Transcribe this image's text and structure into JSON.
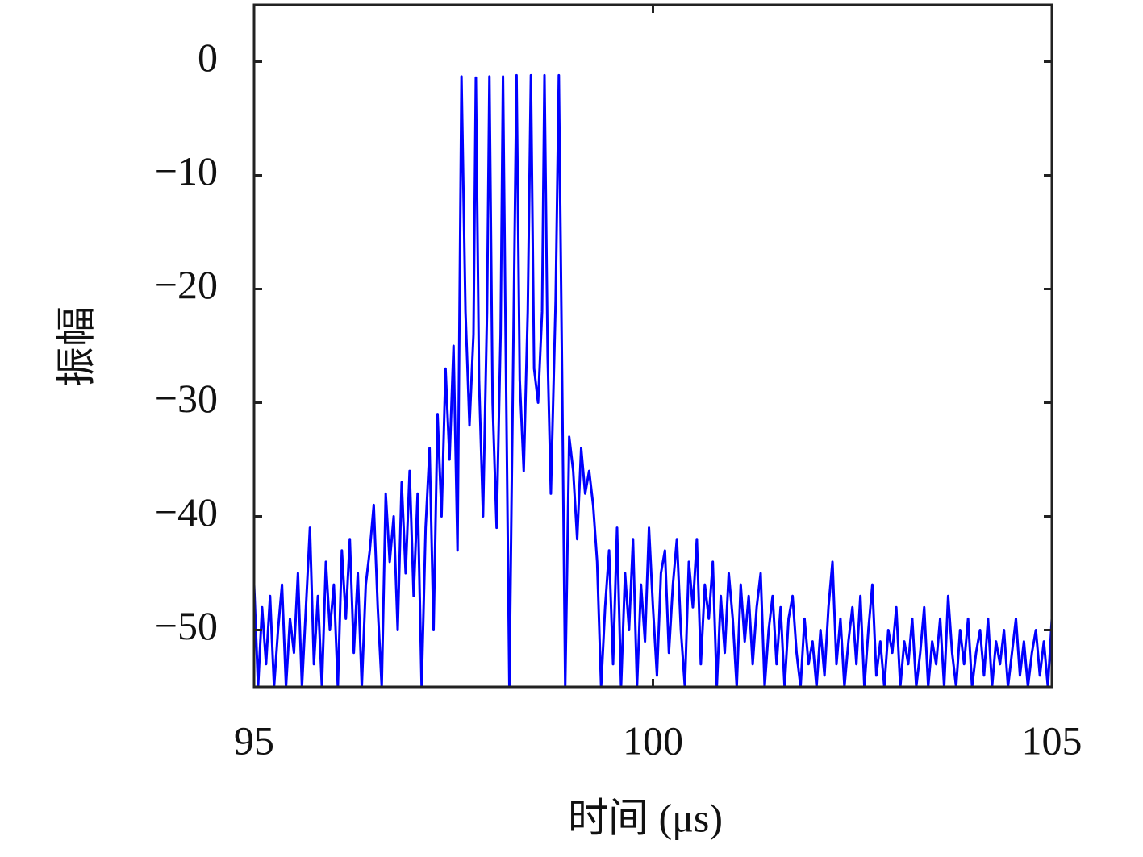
{
  "chart_data": {
    "type": "line",
    "xlabel": "时间 (μs)",
    "ylabel": "振幅",
    "x": [
      95.0,
      95.05,
      95.1,
      95.15,
      95.2,
      95.25,
      95.3,
      95.35,
      95.4,
      95.45,
      95.5,
      95.55,
      95.6,
      95.65,
      95.7,
      95.75,
      95.8,
      95.85,
      95.9,
      95.95,
      96.0,
      96.05,
      96.1,
      96.15,
      96.2,
      96.25,
      96.3,
      96.35,
      96.4,
      96.45,
      96.5,
      96.55,
      96.6,
      96.65,
      96.7,
      96.75,
      96.8,
      96.85,
      96.9,
      96.95,
      97.0,
      97.05,
      97.1,
      97.15,
      97.2,
      97.25,
      97.3,
      97.35,
      97.4,
      97.45,
      97.5,
      97.55,
      97.6,
      97.65,
      97.7,
      97.75,
      97.78,
      97.82,
      97.87,
      97.92,
      97.95,
      97.99,
      98.04,
      98.09,
      98.12,
      98.16,
      98.2,
      98.25,
      98.29,
      98.33,
      98.38,
      98.43,
      98.47,
      98.51,
      98.56,
      98.61,
      98.64,
      98.68,
      98.72,
      98.78,
      98.82,
      98.86,
      98.9,
      98.95,
      99.0,
      99.05,
      99.1,
      99.15,
      99.2,
      99.25,
      99.3,
      99.35,
      99.4,
      99.45,
      99.5,
      99.55,
      99.6,
      99.65,
      99.7,
      99.75,
      99.8,
      99.85,
      99.9,
      99.95,
      100.0,
      100.05,
      100.1,
      100.15,
      100.2,
      100.25,
      100.3,
      100.35,
      100.4,
      100.45,
      100.5,
      100.55,
      100.6,
      100.65,
      100.7,
      100.75,
      100.8,
      100.85,
      100.9,
      100.95,
      101.0,
      101.05,
      101.1,
      101.15,
      101.2,
      101.25,
      101.3,
      101.35,
      101.4,
      101.45,
      101.5,
      101.55,
      101.6,
      101.65,
      101.7,
      101.75,
      101.8,
      101.85,
      101.9,
      101.95,
      102.0,
      102.05,
      102.1,
      102.15,
      102.2,
      102.25,
      102.3,
      102.35,
      102.4,
      102.45,
      102.5,
      102.55,
      102.6,
      102.65,
      102.7,
      102.75,
      102.8,
      102.85,
      102.9,
      102.95,
      103.0,
      103.05,
      103.1,
      103.15,
      103.2,
      103.25,
      103.3,
      103.35,
      103.4,
      103.45,
      103.5,
      103.55,
      103.6,
      103.65,
      103.7,
      103.75,
      103.8,
      103.85,
      103.9,
      103.95,
      104.0,
      104.05,
      104.1,
      104.15,
      104.2,
      104.25,
      104.3,
      104.35,
      104.4,
      104.45,
      104.5,
      104.55,
      104.6,
      104.65,
      104.7,
      104.75,
      104.8,
      104.85,
      104.9,
      104.95,
      105.0
    ],
    "values": [
      -46,
      -55,
      -48,
      -53,
      -47,
      -55,
      -50,
      -46,
      -55,
      -49,
      -52,
      -45,
      -55,
      -48,
      -41,
      -53,
      -47,
      -55,
      -44,
      -50,
      -46,
      -55,
      -43,
      -49,
      -42,
      -52,
      -45,
      -55,
      -46,
      -43,
      -39,
      -48,
      -55,
      -38,
      -44,
      -40,
      -50,
      -37,
      -45,
      -36,
      -47,
      -38,
      -55,
      -41,
      -34,
      -50,
      -31,
      -40,
      -27,
      -35,
      -25,
      -43,
      -1.3,
      -22,
      -32,
      -24,
      -1.4,
      -28,
      -40,
      -22,
      -1.3,
      -30,
      -41,
      -24,
      -1.3,
      -29,
      -55,
      -25,
      -1.2,
      -28,
      -36,
      -22,
      -1.2,
      -27,
      -30,
      -22,
      -1.2,
      -26,
      -38,
      -21,
      -1.2,
      -27,
      -55,
      -33,
      -36,
      -42,
      -34,
      -38,
      -36,
      -39,
      -44,
      -55,
      -48,
      -43,
      -53,
      -41,
      -55,
      -45,
      -50,
      -42,
      -55,
      -46,
      -51,
      -41,
      -48,
      -54,
      -45,
      -43,
      -52,
      -46,
      -42,
      -50,
      -55,
      -44,
      -48,
      -42,
      -53,
      -46,
      -49,
      -44,
      -55,
      -47,
      -52,
      -45,
      -49,
      -55,
      -46,
      -51,
      -47,
      -53,
      -48,
      -45,
      -55,
      -50,
      -47,
      -53,
      -48,
      -55,
      -49,
      -47,
      -52,
      -55,
      -49,
      -53,
      -51,
      -55,
      -50,
      -54,
      -48,
      -44,
      -53,
      -49,
      -55,
      -51,
      -48,
      -53,
      -47,
      -55,
      -50,
      -46,
      -54,
      -51,
      -55,
      -50,
      -52,
      -48,
      -55,
      -51,
      -53,
      -49,
      -55,
      -52,
      -48,
      -55,
      -51,
      -53,
      -49,
      -55,
      -47,
      -52,
      -55,
      -50,
      -53,
      -49,
      -55,
      -52,
      -50,
      -54,
      -49,
      -55,
      -51,
      -53,
      -50,
      -55,
      -52,
      -49,
      -54,
      -51,
      -55,
      -52,
      -50,
      -54,
      -51,
      -55,
      -49
    ],
    "color": "#0000ff",
    "xlim": [
      95,
      105
    ],
    "xticks": [
      95,
      100,
      105
    ],
    "ylim": [
      -55,
      5
    ],
    "yticks": [
      {
        "value": -50,
        "label": "−50"
      },
      {
        "value": -40,
        "label": "−40"
      },
      {
        "value": -30,
        "label": "−30"
      },
      {
        "value": -20,
        "label": "−20"
      },
      {
        "value": -10,
        "label": "−10"
      },
      0
    ]
  }
}
